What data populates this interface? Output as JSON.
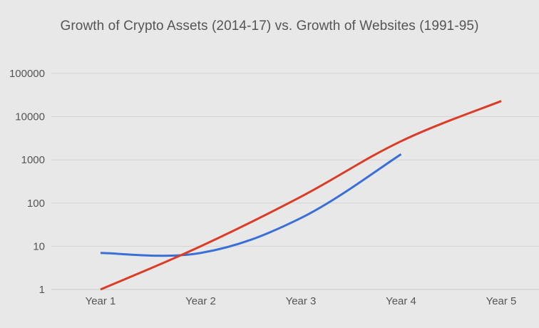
{
  "chart_data": {
    "type": "line",
    "title": "Growth of Crypto Assets (2014-17) vs. Growth of Websites (1991-95)",
    "xlabel": "",
    "ylabel": "",
    "categories": [
      "Year 1",
      "Year 2",
      "Year 3",
      "Year 4",
      "Year 5"
    ],
    "y_scale": "log",
    "ylim": [
      1,
      100000
    ],
    "y_ticks": [
      1,
      10,
      100,
      1000,
      10000,
      100000
    ],
    "y_tick_labels": [
      "1",
      "10",
      "100",
      "1000",
      "10000",
      "100000"
    ],
    "grid": true,
    "legend": "none",
    "series": [
      {
        "color": "#3a6fd8",
        "values": [
          7,
          7,
          45,
          1350,
          null
        ]
      },
      {
        "color": "#dc3c26",
        "values": [
          1,
          10,
          140,
          2700,
          23000
        ]
      }
    ]
  },
  "colors": {
    "background": "#e8e8e8",
    "gridline": "#d4d4d4",
    "text": "#555555"
  }
}
